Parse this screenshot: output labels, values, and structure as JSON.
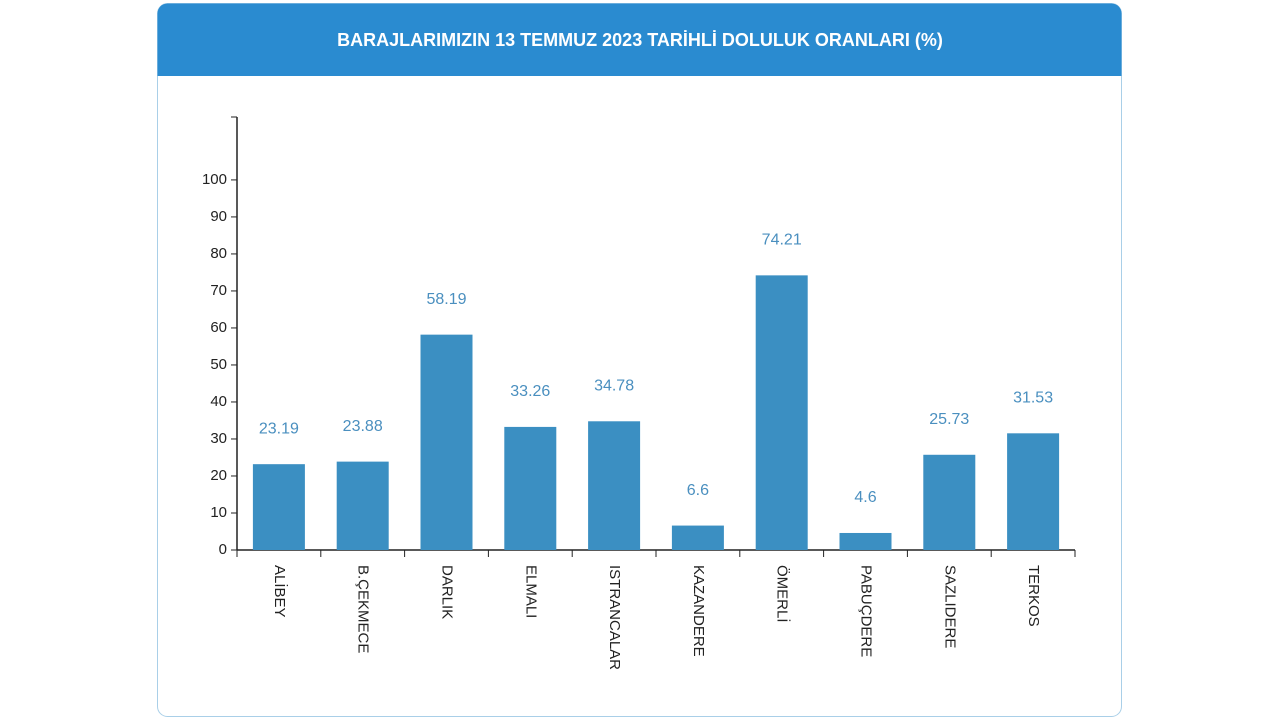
{
  "chart_data": {
    "type": "bar",
    "title": "BARAJLARIMIZIN 13 TEMMUZ 2023 TARİHLİ DOLULUK ORANLARI (%)",
    "categories": [
      "ALİBEY",
      "B.ÇEKMECE",
      "DARLIK",
      "ELMALI",
      "ISTRANCALAR",
      "KAZANDERE",
      "ÖMERLİ",
      "PABUÇDERE",
      "SAZLIDERE",
      "TERKOS"
    ],
    "values": [
      23.19,
      23.88,
      58.19,
      33.26,
      34.78,
      6.6,
      74.21,
      4.6,
      25.73,
      31.53
    ],
    "color": "#3b8fc2",
    "ylim": [
      0,
      117
    ],
    "yticks": [
      0,
      10,
      20,
      30,
      40,
      50,
      60,
      70,
      80,
      90,
      100
    ],
    "grid": false
  }
}
